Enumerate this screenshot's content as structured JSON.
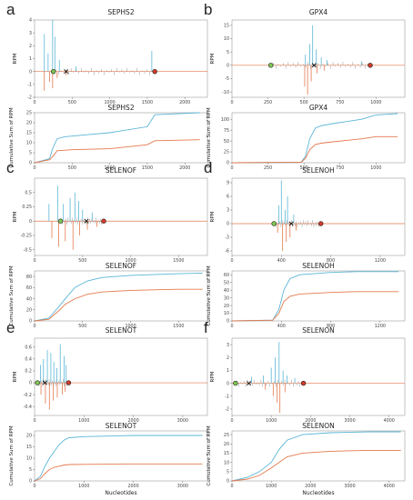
{
  "figure": {
    "x_axis_label": "Nucleotides",
    "rpm_axis_label": "RPM",
    "cumulative_axis_label": "Cumulative Sum of RPM",
    "series_colors": {
      "blue": "#5ab6d6",
      "orange": "#e4794e"
    },
    "marker_colors": {
      "start": "#7ec850",
      "stop": "#d23a2a"
    }
  },
  "chart_data": [
    {
      "panel": "a",
      "type": "line",
      "title": "SEPHS2",
      "ylabel": "RPM",
      "xlim": [
        0,
        2300
      ],
      "ylim": [
        -2,
        4
      ],
      "xticks": [
        0,
        500,
        1000,
        1500,
        2000
      ],
      "yticks": [
        -2,
        -1,
        0,
        1,
        2,
        3,
        4
      ],
      "start_codon": 250,
      "sec_codon": 420,
      "stop_codon": 1600,
      "spikes_pos": [
        [
          130,
          2.9
        ],
        [
          180,
          1.4
        ],
        [
          240,
          4.0
        ],
        [
          270,
          2.7
        ],
        [
          330,
          0.9
        ],
        [
          550,
          0.4
        ],
        [
          1560,
          1.6
        ]
      ],
      "spikes_neg": [
        [
          130,
          -1.5
        ],
        [
          200,
          -0.8
        ],
        [
          240,
          -1.3
        ],
        [
          300,
          -0.5
        ],
        [
          420,
          -0.3
        ]
      ]
    },
    {
      "panel": "a",
      "type": "line",
      "title": "SEPHS2",
      "ylabel": "Cumulative Sum of RPM",
      "xlim": [
        0,
        2300
      ],
      "ylim": [
        0,
        25
      ],
      "xticks": [
        0,
        500,
        1000,
        1500,
        2000
      ],
      "yticks": [
        0,
        5,
        10,
        15,
        20,
        25
      ],
      "series": [
        {
          "color": "blue",
          "x": [
            0,
            200,
            240,
            300,
            400,
            700,
            1000,
            1500,
            1600,
            2200
          ],
          "y": [
            0,
            2,
            7,
            12,
            13,
            14,
            15,
            18,
            24,
            25
          ]
        },
        {
          "color": "orange",
          "x": [
            0,
            200,
            240,
            300,
            500,
            1000,
            1500,
            1600,
            2200
          ],
          "y": [
            0,
            1.5,
            3,
            6,
            6.5,
            7,
            9,
            11,
            11.5
          ]
        }
      ]
    },
    {
      "panel": "b",
      "type": "line",
      "title": "GPX4",
      "ylabel": "RPM",
      "xlim": [
        0,
        1200
      ],
      "ylim": [
        -12,
        17
      ],
      "xticks": [
        0,
        250,
        500,
        750,
        1000
      ],
      "yticks": [
        -10,
        -5,
        0,
        5,
        10,
        15
      ],
      "start_codon": 270,
      "sec_codon": 570,
      "stop_codon": 960,
      "spikes_pos": [
        [
          510,
          4
        ],
        [
          540,
          8
        ],
        [
          560,
          15
        ],
        [
          585,
          6
        ],
        [
          620,
          3
        ],
        [
          660,
          2
        ],
        [
          900,
          1.5
        ]
      ],
      "spikes_neg": [
        [
          505,
          -8
        ],
        [
          525,
          -11
        ],
        [
          550,
          -6
        ],
        [
          590,
          -3
        ],
        [
          640,
          -2
        ]
      ]
    },
    {
      "panel": "b",
      "type": "line",
      "title": "GPX4",
      "ylabel": "Cumulative Sum of RPM",
      "xlim": [
        0,
        1200
      ],
      "ylim": [
        0,
        115
      ],
      "xticks": [
        0,
        250,
        500,
        750,
        1000
      ],
      "yticks": [
        0,
        25,
        50,
        75,
        100
      ],
      "series": [
        {
          "color": "blue",
          "x": [
            0,
            480,
            510,
            540,
            580,
            620,
            700,
            900,
            1000,
            1150
          ],
          "y": [
            0,
            1,
            15,
            55,
            80,
            85,
            90,
            100,
            110,
            113
          ]
        },
        {
          "color": "orange",
          "x": [
            0,
            480,
            510,
            540,
            580,
            620,
            700,
            900,
            1000,
            1150
          ],
          "y": [
            0,
            1,
            10,
            30,
            42,
            45,
            48,
            55,
            60,
            60
          ]
        }
      ]
    },
    {
      "panel": "c",
      "type": "line",
      "title": "SELENOF",
      "ylabel": "RPM",
      "xlim": [
        0,
        1800
      ],
      "ylim": [
        -0.6,
        0.75
      ],
      "xticks": [
        0,
        500,
        1000,
        1500
      ],
      "yticks": [
        -0.5,
        -0.25,
        0.0,
        0.25,
        0.5
      ],
      "start_codon": 270,
      "sec_codon": 540,
      "stop_codon": 720,
      "spikes_pos": [
        [
          150,
          0.3
        ],
        [
          240,
          0.62
        ],
        [
          300,
          0.3
        ],
        [
          370,
          0.4
        ],
        [
          420,
          0.5
        ],
        [
          460,
          0.35
        ],
        [
          500,
          0.2
        ],
        [
          600,
          0.15
        ]
      ],
      "spikes_neg": [
        [
          180,
          -0.3
        ],
        [
          250,
          -0.45
        ],
        [
          320,
          -0.35
        ],
        [
          400,
          -0.5
        ],
        [
          470,
          -0.25
        ],
        [
          550,
          -0.15
        ],
        [
          650,
          -0.1
        ]
      ]
    },
    {
      "panel": "c",
      "type": "line",
      "title": "SELENOF",
      "ylabel": "Cumulative Sum of RPM",
      "xlim": [
        0,
        1800
      ],
      "ylim": [
        0,
        90
      ],
      "xticks": [
        0,
        500,
        1000,
        1500
      ],
      "yticks": [
        0,
        20,
        40,
        60,
        80
      ],
      "series": [
        {
          "color": "blue",
          "x": [
            0,
            150,
            250,
            320,
            420,
            550,
            700,
            1000,
            1500,
            1750
          ],
          "y": [
            0,
            5,
            25,
            40,
            60,
            72,
            78,
            82,
            85,
            86
          ]
        },
        {
          "color": "orange",
          "x": [
            0,
            150,
            250,
            320,
            420,
            550,
            700,
            1000,
            1500,
            1750
          ],
          "y": [
            0,
            3,
            18,
            30,
            40,
            48,
            52,
            55,
            57,
            57
          ]
        }
      ]
    },
    {
      "panel": "d",
      "type": "line",
      "title": "SELENOH",
      "ylabel": "RPM",
      "xlim": [
        0,
        1400
      ],
      "ylim": [
        -7,
        10
      ],
      "xticks": [
        0,
        400,
        800,
        1200
      ],
      "yticks": [
        -6,
        -3,
        0,
        3,
        6,
        9
      ],
      "start_codon": 340,
      "sec_codon": 480,
      "stop_codon": 720,
      "spikes_pos": [
        [
          380,
          4
        ],
        [
          400,
          9.5
        ],
        [
          430,
          3
        ],
        [
          450,
          6
        ],
        [
          500,
          2
        ]
      ],
      "spikes_neg": [
        [
          370,
          -2
        ],
        [
          410,
          -6
        ],
        [
          440,
          -4
        ],
        [
          470,
          -3
        ],
        [
          520,
          -1.5
        ]
      ]
    },
    {
      "panel": "d",
      "type": "line",
      "title": "SELENOH",
      "ylabel": "Cumulative Sum of RPM",
      "xlim": [
        0,
        1400
      ],
      "ylim": [
        0,
        65
      ],
      "xticks": [
        0,
        400,
        800,
        1200
      ],
      "yticks": [
        0,
        10,
        20,
        30,
        40,
        50,
        60
      ],
      "series": [
        {
          "color": "blue",
          "x": [
            0,
            330,
            380,
            420,
            470,
            550,
            800,
            1000,
            1350
          ],
          "y": [
            0,
            1,
            15,
            40,
            55,
            60,
            63,
            64,
            64
          ]
        },
        {
          "color": "orange",
          "x": [
            0,
            330,
            380,
            420,
            470,
            550,
            800,
            1000,
            1350
          ],
          "y": [
            0,
            1,
            10,
            25,
            32,
            35,
            37,
            38,
            38
          ]
        }
      ]
    },
    {
      "panel": "e",
      "type": "line",
      "title": "SELENOT",
      "ylabel": "RPM",
      "xlim": [
        0,
        3500
      ],
      "ylim": [
        -0.55,
        0.75
      ],
      "xticks": [
        0,
        1000,
        2000,
        3000
      ],
      "yticks": [
        -0.4,
        -0.2,
        0.0,
        0.2,
        0.4,
        0.6
      ],
      "start_codon": 60,
      "sec_codon": 210,
      "stop_codon": 690,
      "spikes_pos": [
        [
          120,
          0.3
        ],
        [
          180,
          0.4
        ],
        [
          260,
          0.55
        ],
        [
          330,
          0.5
        ],
        [
          390,
          0.35
        ],
        [
          450,
          0.25
        ],
        [
          520,
          0.65
        ],
        [
          600,
          0.45
        ],
        [
          640,
          0.3
        ]
      ],
      "spikes_neg": [
        [
          130,
          -0.2
        ],
        [
          220,
          -0.35
        ],
        [
          300,
          -0.45
        ],
        [
          380,
          -0.3
        ],
        [
          460,
          -0.25
        ],
        [
          560,
          -0.2
        ],
        [
          620,
          -0.15
        ]
      ]
    },
    {
      "panel": "e",
      "type": "line",
      "title": "SELENOT",
      "ylabel": "Cumulative Sum of RPM",
      "xlim": [
        0,
        3500
      ],
      "ylim": [
        0,
        22
      ],
      "xticks": [
        0,
        1000,
        2000,
        3000
      ],
      "yticks": [
        0,
        5,
        10,
        15,
        20
      ],
      "series": [
        {
          "color": "blue",
          "x": [
            0,
            120,
            200,
            300,
            400,
            500,
            600,
            700,
            1000,
            2000,
            3400
          ],
          "y": [
            0,
            2,
            6,
            10,
            13,
            16,
            18,
            19,
            19.5,
            20,
            20
          ]
        },
        {
          "color": "orange",
          "x": [
            0,
            120,
            200,
            300,
            400,
            500,
            600,
            700,
            1000,
            2000,
            3400
          ],
          "y": [
            0,
            1,
            3,
            5,
            6,
            6.5,
            7,
            7.2,
            7.3,
            7.5,
            7.5
          ]
        }
      ]
    },
    {
      "panel": "f",
      "type": "line",
      "title": "SELENON",
      "ylabel": "RPM",
      "xlim": [
        0,
        4400
      ],
      "ylim": [
        -2.5,
        3.5
      ],
      "xticks": [
        0,
        1000,
        2000,
        3000,
        4000
      ],
      "yticks": [
        -2,
        -1,
        0,
        1,
        2,
        3
      ],
      "start_codon": 90,
      "sec_codon": 430,
      "stop_codon": 1820,
      "spikes_pos": [
        [
          500,
          0.5
        ],
        [
          800,
          0.6
        ],
        [
          1000,
          1.2
        ],
        [
          1100,
          2.0
        ],
        [
          1200,
          3.2
        ],
        [
          1300,
          1.0
        ],
        [
          1400,
          0.6
        ],
        [
          1600,
          0.4
        ]
      ],
      "spikes_neg": [
        [
          850,
          -0.5
        ],
        [
          1050,
          -1.0
        ],
        [
          1150,
          -1.5
        ],
        [
          1220,
          -2.3
        ],
        [
          1350,
          -0.7
        ]
      ]
    },
    {
      "panel": "f",
      "type": "line",
      "title": "SELENON",
      "ylabel": "Cumulative Sum of RPM",
      "xlim": [
        0,
        4400
      ],
      "ylim": [
        0,
        27
      ],
      "xticks": [
        0,
        1000,
        2000,
        3000,
        4000
      ],
      "yticks": [
        0,
        5,
        10,
        15,
        20,
        25
      ],
      "series": [
        {
          "color": "blue",
          "x": [
            0,
            400,
            700,
            1000,
            1200,
            1400,
            1800,
            2500,
            3500,
            4300
          ],
          "y": [
            0,
            2,
            5,
            10,
            17,
            22,
            25,
            26,
            26.5,
            26.5
          ]
        },
        {
          "color": "orange",
          "x": [
            0,
            400,
            700,
            1000,
            1200,
            1400,
            1800,
            2500,
            3500,
            4300
          ],
          "y": [
            0,
            1,
            3,
            7,
            10,
            13,
            15,
            16,
            16.5,
            16.5
          ]
        }
      ]
    }
  ]
}
